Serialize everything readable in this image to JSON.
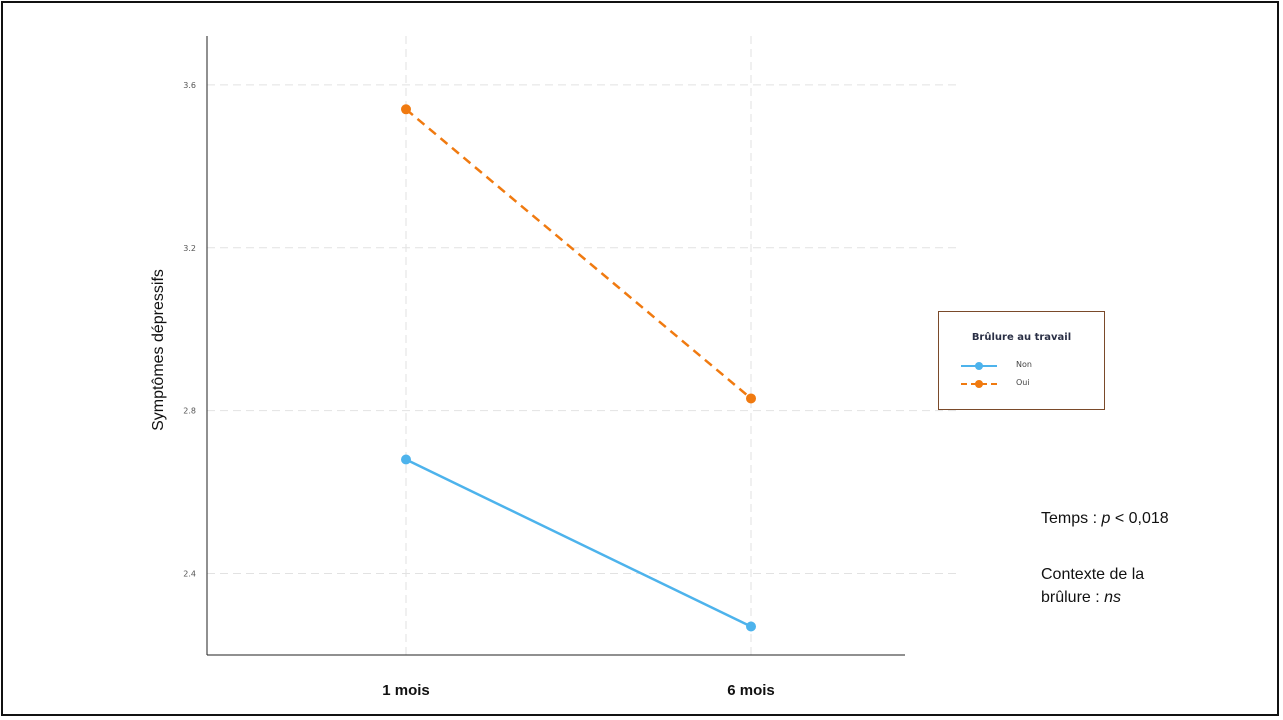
{
  "chart_data": {
    "type": "line",
    "categories": [
      "1 mois",
      "6 mois"
    ],
    "series": [
      {
        "name": "Non",
        "values": [
          2.68,
          2.27
        ],
        "color": "#4db3ec",
        "dash": "solid"
      },
      {
        "name": "Oui",
        "values": [
          3.54,
          2.83
        ],
        "color": "#f07a10",
        "dash": "dashed"
      }
    ],
    "title": "",
    "xlabel": "",
    "ylabel": "Symptômes dépressifs",
    "ylim": [
      2.2,
      3.72
    ],
    "yticks": [
      2.4,
      2.8,
      3.2,
      3.6
    ],
    "ytick_labels": [
      "2.4",
      "2.8",
      "3.2",
      "3.6"
    ],
    "grid": true,
    "legend": {
      "title": "Brûlure au travail",
      "position": "right"
    }
  },
  "annotations": {
    "temps_prefix": "Temps : ",
    "temps_p": "p",
    "temps_value": " < 0,018",
    "contexte_line1": "Contexte de la",
    "contexte_line2_prefix": "brûlure : ",
    "contexte_ns": "ns"
  }
}
